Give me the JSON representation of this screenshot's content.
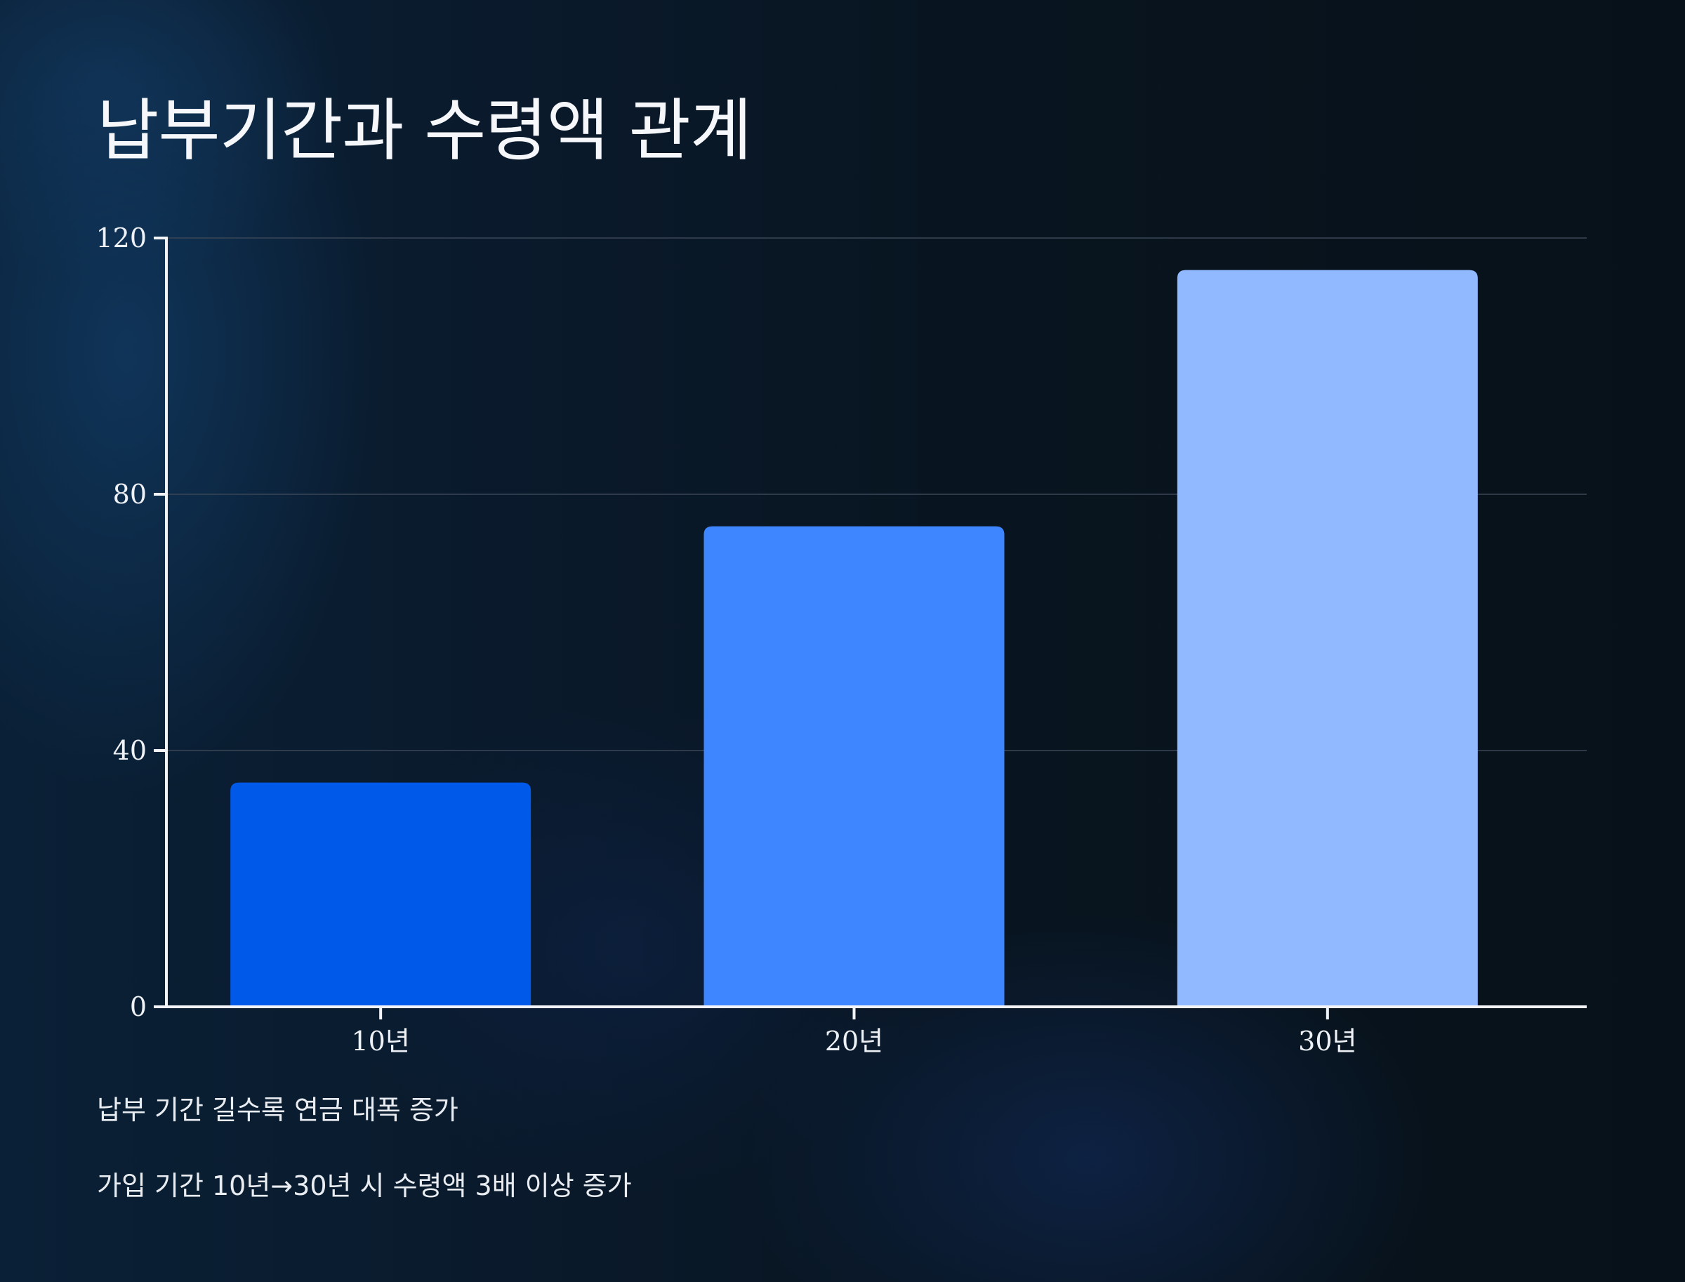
{
  "title": "납부기간과 수령액 관계",
  "notes": [
    "납부 기간 길수록 연금 대폭 증가",
    "가입 기간 10년→30년 시 수령액 3배 이상 증가"
  ],
  "chart_data": {
    "type": "bar",
    "title": "납부기간과 수령액 관계",
    "xlabel": "",
    "ylabel": "",
    "categories": [
      "10년",
      "20년",
      "30년"
    ],
    "values": [
      35,
      75,
      115
    ],
    "ylim": [
      0,
      120
    ],
    "yticks": [
      0,
      40,
      80,
      120
    ],
    "grid": true,
    "legend": "none",
    "colors": [
      "#0059e8",
      "#3d86ff",
      "#91b9ff"
    ],
    "axis_color": "#f2f4f7",
    "grid_color": "#3a4656"
  }
}
